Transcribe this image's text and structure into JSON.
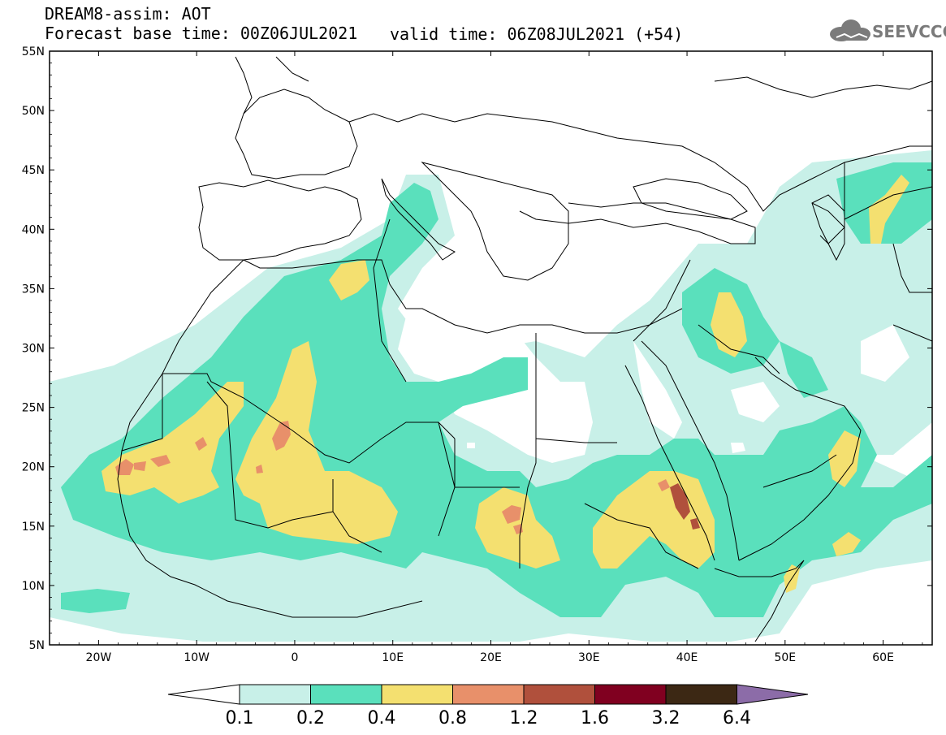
{
  "title": {
    "line1": "DREAM8-assim: AOT",
    "line2": "Forecast base time: 00Z06JUL2021",
    "valid": "valid time: 06Z08JUL2021 (+54)"
  },
  "logo": {
    "text": "SEEVCCC",
    "icon": "cloud-icon"
  },
  "map": {
    "lon_range": [
      -25,
      65
    ],
    "lat_range": [
      5,
      55
    ],
    "lat_labels": [
      "55N",
      "50N",
      "45N",
      "40N",
      "35N",
      "30N",
      "25N",
      "20N",
      "15N",
      "10N",
      "5N"
    ],
    "lon_labels": [
      "20W",
      "10W",
      "0",
      "10E",
      "20E",
      "30E",
      "40E",
      "50E",
      "60E"
    ]
  },
  "colorbar": {
    "labels": [
      "0.1",
      "0.2",
      "0.4",
      "0.8",
      "1.2",
      "1.6",
      "3.2",
      "6.4"
    ],
    "colors": [
      "#ffffff",
      "#c8f0e8",
      "#5ae0bc",
      "#f4e070",
      "#e8906a",
      "#b0503c",
      "#800020",
      "#3c2814",
      "#8c6ca8"
    ]
  }
}
